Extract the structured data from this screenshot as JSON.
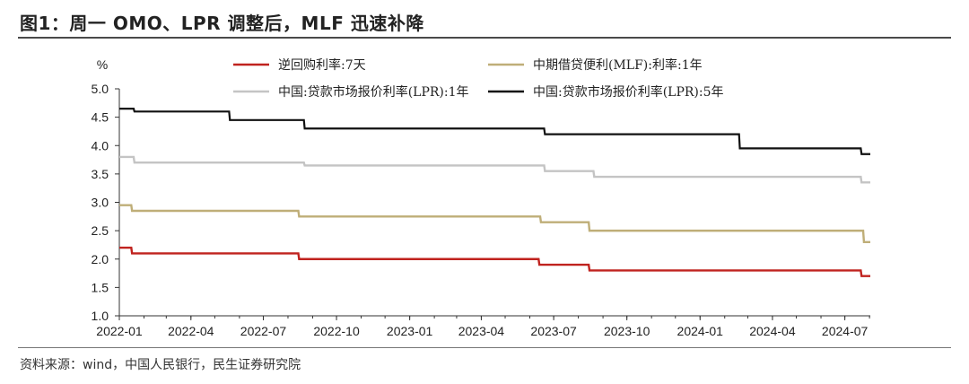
{
  "page": {
    "title": "图1：周一 OMO、LPR 调整后，MLF 迅速补降",
    "source": "资料来源：wind，中国人民银行，民生证券研究院"
  },
  "chart_data": {
    "type": "line",
    "ylabel": "%",
    "ylim": [
      1.0,
      5.0
    ],
    "yticks": [
      "5.0",
      "4.5",
      "4.0",
      "3.5",
      "3.0",
      "2.5",
      "2.0",
      "1.5",
      "1.0"
    ],
    "xlim": [
      "2022-01-01",
      "2024-08-02"
    ],
    "xticks": [
      "2022-01",
      "2022-04",
      "2022-07",
      "2022-10",
      "2023-01",
      "2023-04",
      "2023-07",
      "2023-10",
      "2024-01",
      "2024-04",
      "2024-07"
    ],
    "grid": false,
    "legend_position": "top",
    "series": [
      {
        "name": "逆回购利率:7天",
        "color": "#c0231f",
        "points": [
          [
            "2022-01-01",
            2.2
          ],
          [
            "2022-01-16",
            2.2
          ],
          [
            "2022-01-17",
            2.1
          ],
          [
            "2022-08-14",
            2.1
          ],
          [
            "2022-08-15",
            2.0
          ],
          [
            "2023-06-12",
            2.0
          ],
          [
            "2023-06-13",
            1.9
          ],
          [
            "2023-08-14",
            1.9
          ],
          [
            "2023-08-15",
            1.8
          ],
          [
            "2024-07-21",
            1.8
          ],
          [
            "2024-07-22",
            1.7
          ],
          [
            "2024-08-02",
            1.7
          ]
        ]
      },
      {
        "name": "中期借贷便利(MLF):利率:1年",
        "color": "#bfae78",
        "points": [
          [
            "2022-01-01",
            2.95
          ],
          [
            "2022-01-16",
            2.95
          ],
          [
            "2022-01-17",
            2.85
          ],
          [
            "2022-08-14",
            2.85
          ],
          [
            "2022-08-15",
            2.75
          ],
          [
            "2023-06-14",
            2.75
          ],
          [
            "2023-06-15",
            2.65
          ],
          [
            "2023-08-14",
            2.65
          ],
          [
            "2023-08-15",
            2.5
          ],
          [
            "2024-07-24",
            2.5
          ],
          [
            "2024-07-25",
            2.3
          ],
          [
            "2024-08-02",
            2.3
          ]
        ]
      },
      {
        "name": "中国:贷款市场报价利率(LPR):1年",
        "color": "#c4c4c4",
        "points": [
          [
            "2022-01-01",
            3.8
          ],
          [
            "2022-01-19",
            3.8
          ],
          [
            "2022-01-20",
            3.7
          ],
          [
            "2022-08-21",
            3.7
          ],
          [
            "2022-08-22",
            3.65
          ],
          [
            "2023-06-19",
            3.65
          ],
          [
            "2023-06-20",
            3.55
          ],
          [
            "2023-08-20",
            3.55
          ],
          [
            "2023-08-21",
            3.45
          ],
          [
            "2024-07-21",
            3.45
          ],
          [
            "2024-07-22",
            3.35
          ],
          [
            "2024-08-02",
            3.35
          ]
        ]
      },
      {
        "name": "中国:贷款市场报价利率(LPR):5年",
        "color": "#111111",
        "points": [
          [
            "2022-01-01",
            4.65
          ],
          [
            "2022-01-19",
            4.65
          ],
          [
            "2022-01-20",
            4.6
          ],
          [
            "2022-05-19",
            4.6
          ],
          [
            "2022-05-20",
            4.45
          ],
          [
            "2022-08-21",
            4.45
          ],
          [
            "2022-08-22",
            4.3
          ],
          [
            "2023-06-19",
            4.3
          ],
          [
            "2023-06-20",
            4.2
          ],
          [
            "2024-02-19",
            4.2
          ],
          [
            "2024-02-20",
            3.95
          ],
          [
            "2024-07-21",
            3.95
          ],
          [
            "2024-07-22",
            3.85
          ],
          [
            "2024-08-02",
            3.85
          ]
        ]
      }
    ]
  }
}
